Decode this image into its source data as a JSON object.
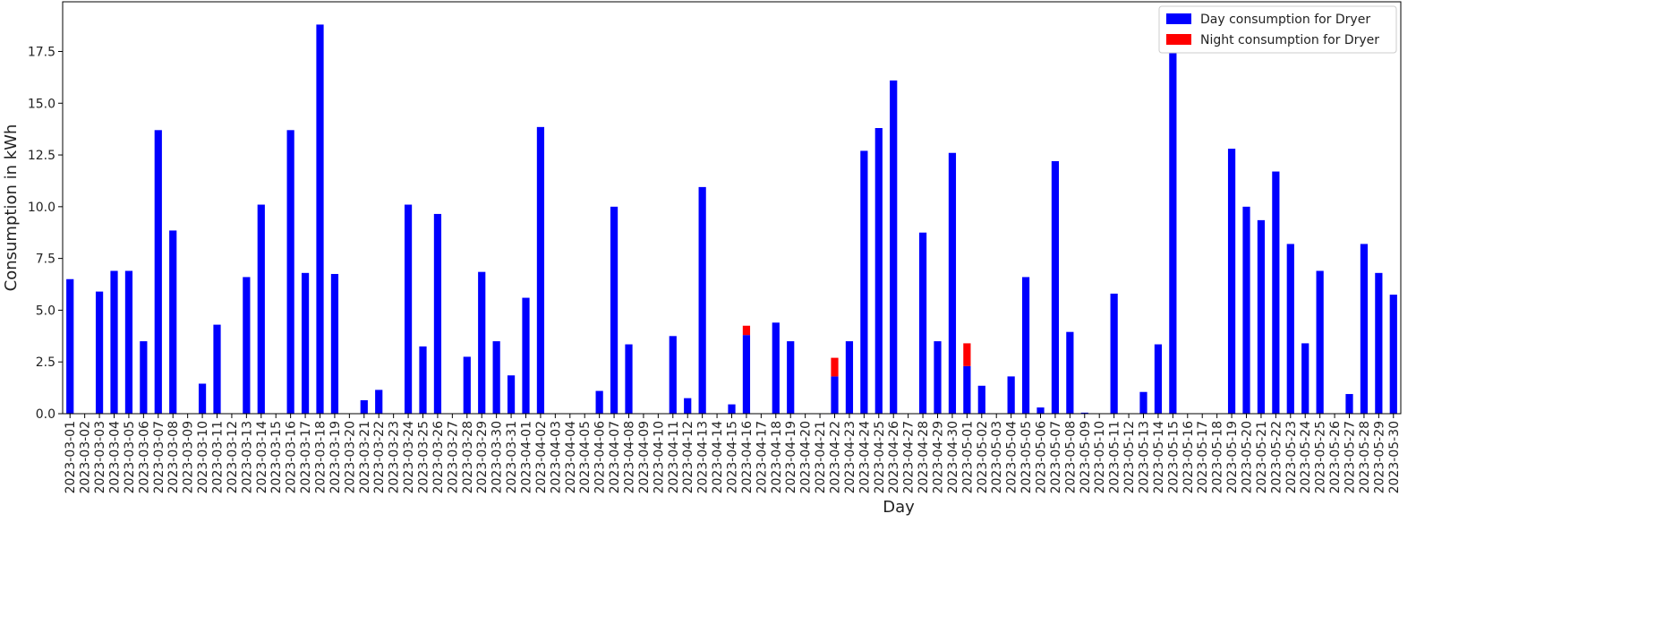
{
  "chart_data": {
    "type": "stacked_bar",
    "ylabel": "Consumption in kWh",
    "xlabel": "Day",
    "categories": [
      "2023-03-01",
      "2023-03-02",
      "2023-03-03",
      "2023-03-04",
      "2023-03-05",
      "2023-03-06",
      "2023-03-07",
      "2023-03-08",
      "2023-03-09",
      "2023-03-10",
      "2023-03-11",
      "2023-03-12",
      "2023-03-13",
      "2023-03-14",
      "2023-03-15",
      "2023-03-16",
      "2023-03-17",
      "2023-03-18",
      "2023-03-19",
      "2023-03-20",
      "2023-03-21",
      "2023-03-22",
      "2023-03-23",
      "2023-03-24",
      "2023-03-25",
      "2023-03-26",
      "2023-03-27",
      "2023-03-28",
      "2023-03-29",
      "2023-03-30",
      "2023-03-31",
      "2023-04-01",
      "2023-04-02",
      "2023-04-03",
      "2023-04-04",
      "2023-04-05",
      "2023-04-06",
      "2023-04-07",
      "2023-04-08",
      "2023-04-09",
      "2023-04-10",
      "2023-04-11",
      "2023-04-12",
      "2023-04-13",
      "2023-04-14",
      "2023-04-15",
      "2023-04-16",
      "2023-04-17",
      "2023-04-18",
      "2023-04-19",
      "2023-04-20",
      "2023-04-21",
      "2023-04-22",
      "2023-04-23",
      "2023-04-24",
      "2023-04-25",
      "2023-04-26",
      "2023-04-27",
      "2023-04-28",
      "2023-04-29",
      "2023-04-30",
      "2023-05-01",
      "2023-05-02",
      "2023-05-03",
      "2023-05-04",
      "2023-05-05",
      "2023-05-06",
      "2023-05-07",
      "2023-05-08",
      "2023-05-09",
      "2023-05-10",
      "2023-05-11",
      "2023-05-12",
      "2023-05-13",
      "2023-05-14",
      "2023-05-15",
      "2023-05-16",
      "2023-05-17",
      "2023-05-18",
      "2023-05-19",
      "2023-05-20",
      "2023-05-21",
      "2023-05-22",
      "2023-05-23",
      "2023-05-24",
      "2023-05-25",
      "2023-05-26",
      "2023-05-27",
      "2023-05-28",
      "2023-05-29",
      "2023-05-30"
    ],
    "series": [
      {
        "name": "Day consumption for Dryer",
        "color": "#0000ff",
        "values": [
          6.5,
          0,
          5.9,
          6.9,
          6.9,
          3.5,
          13.7,
          8.85,
          0,
          1.45,
          4.3,
          0,
          6.6,
          10.1,
          0,
          13.7,
          6.8,
          18.8,
          6.75,
          0,
          0.65,
          1.15,
          0,
          10.1,
          3.25,
          9.65,
          0,
          2.75,
          6.85,
          3.5,
          1.85,
          5.6,
          13.85,
          0,
          0,
          0,
          1.1,
          10.0,
          3.35,
          0,
          0,
          3.75,
          0.75,
          10.95,
          0,
          0.45,
          3.8,
          0,
          4.4,
          3.5,
          0,
          0,
          1.8,
          3.5,
          12.7,
          13.8,
          16.1,
          0,
          8.75,
          3.5,
          12.6,
          2.3,
          1.35,
          0,
          1.8,
          6.6,
          0.3,
          12.2,
          3.95,
          0.05,
          0,
          5.8,
          0,
          1.05,
          3.35,
          17.5,
          0,
          0,
          0,
          12.8,
          10.0,
          9.35,
          11.7,
          8.2,
          3.4,
          6.9,
          0,
          0.95,
          8.2,
          6.8,
          5.75
        ]
      },
      {
        "name": "Night consumption for Dryer",
        "color": "#ff0000",
        "values": [
          0,
          0,
          0,
          0,
          0,
          0,
          0,
          0,
          0,
          0,
          0,
          0,
          0,
          0,
          0,
          0,
          0,
          0,
          0,
          0,
          0,
          0,
          0,
          0,
          0,
          0,
          0,
          0,
          0,
          0,
          0,
          0,
          0,
          0,
          0,
          0,
          0,
          0,
          0,
          0,
          0,
          0,
          0,
          0,
          0,
          0,
          0.45,
          0,
          0,
          0,
          0,
          0,
          0.9,
          0,
          0,
          0,
          0,
          0,
          0,
          0,
          0,
          1.1,
          0,
          0,
          0,
          0,
          0,
          0,
          0,
          0,
          0,
          0,
          0,
          0,
          0,
          0,
          0,
          0,
          0,
          0,
          0,
          0,
          0,
          0,
          0,
          0,
          0,
          0,
          0,
          0,
          0
        ]
      }
    ],
    "ylim": [
      0,
      19.9
    ],
    "yticks": [
      {
        "value": 0,
        "label": "0.0"
      },
      2.5,
      {
        "value": 5,
        "label": "5.0"
      },
      7.5,
      {
        "value": 10,
        "label": "10.0"
      },
      12.5,
      {
        "value": 15,
        "label": "15.0"
      },
      17.5
    ],
    "legend": "upper right"
  }
}
